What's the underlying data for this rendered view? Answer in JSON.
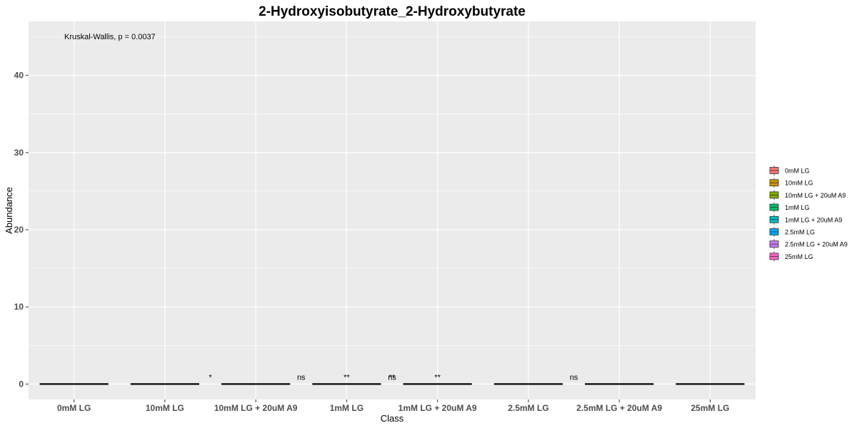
{
  "chart_data": {
    "type": "box",
    "title": "2-Hydroxyisobutyrate_2-Hydroxybutyrate",
    "xlabel": "Class",
    "ylabel": "Abundance",
    "ylim": [
      -2,
      47
    ],
    "yticks": [
      0,
      10,
      20,
      30,
      40
    ],
    "grid": true,
    "legend_position": "right",
    "annotation": "Kruskal-Wallis, p = 0.0037",
    "categories": [
      "0mM LG",
      "10mM LG",
      "10mM LG + 20uM A9",
      "1mM LG",
      "1mM LG + 20uM A9",
      "2.5mM LG",
      "2.5mM LG + 20uM A9",
      "25mM LG"
    ],
    "values": [
      0,
      0,
      0,
      0,
      0,
      0,
      0,
      0
    ],
    "significance": [
      {
        "x": 2.5,
        "label": "*"
      },
      {
        "x": 3.5,
        "label": "ns"
      },
      {
        "x": 4.0,
        "label": "**"
      },
      {
        "x": 4.5,
        "label": "ns"
      },
      {
        "x": 4.5,
        "label": "**"
      },
      {
        "x": 5.0,
        "label": "**"
      },
      {
        "x": 6.5,
        "label": "ns"
      }
    ],
    "series": [
      {
        "name": "0mM LG",
        "color": "#F8766D"
      },
      {
        "name": "10mM LG",
        "color": "#CD9600"
      },
      {
        "name": "10mM LG + 20uM A9",
        "color": "#7CAE00"
      },
      {
        "name": "1mM LG",
        "color": "#00BE67"
      },
      {
        "name": "1mM LG + 20uM A9",
        "color": "#00BFC4"
      },
      {
        "name": "2.5mM LG",
        "color": "#00A9FF"
      },
      {
        "name": "2.5mM LG + 20uM A9",
        "color": "#C77CFF"
      },
      {
        "name": "25mM LG",
        "color": "#FF61CC"
      }
    ],
    "panel_background": "#EBEBEB",
    "grid_color": "#FFFFFF"
  }
}
